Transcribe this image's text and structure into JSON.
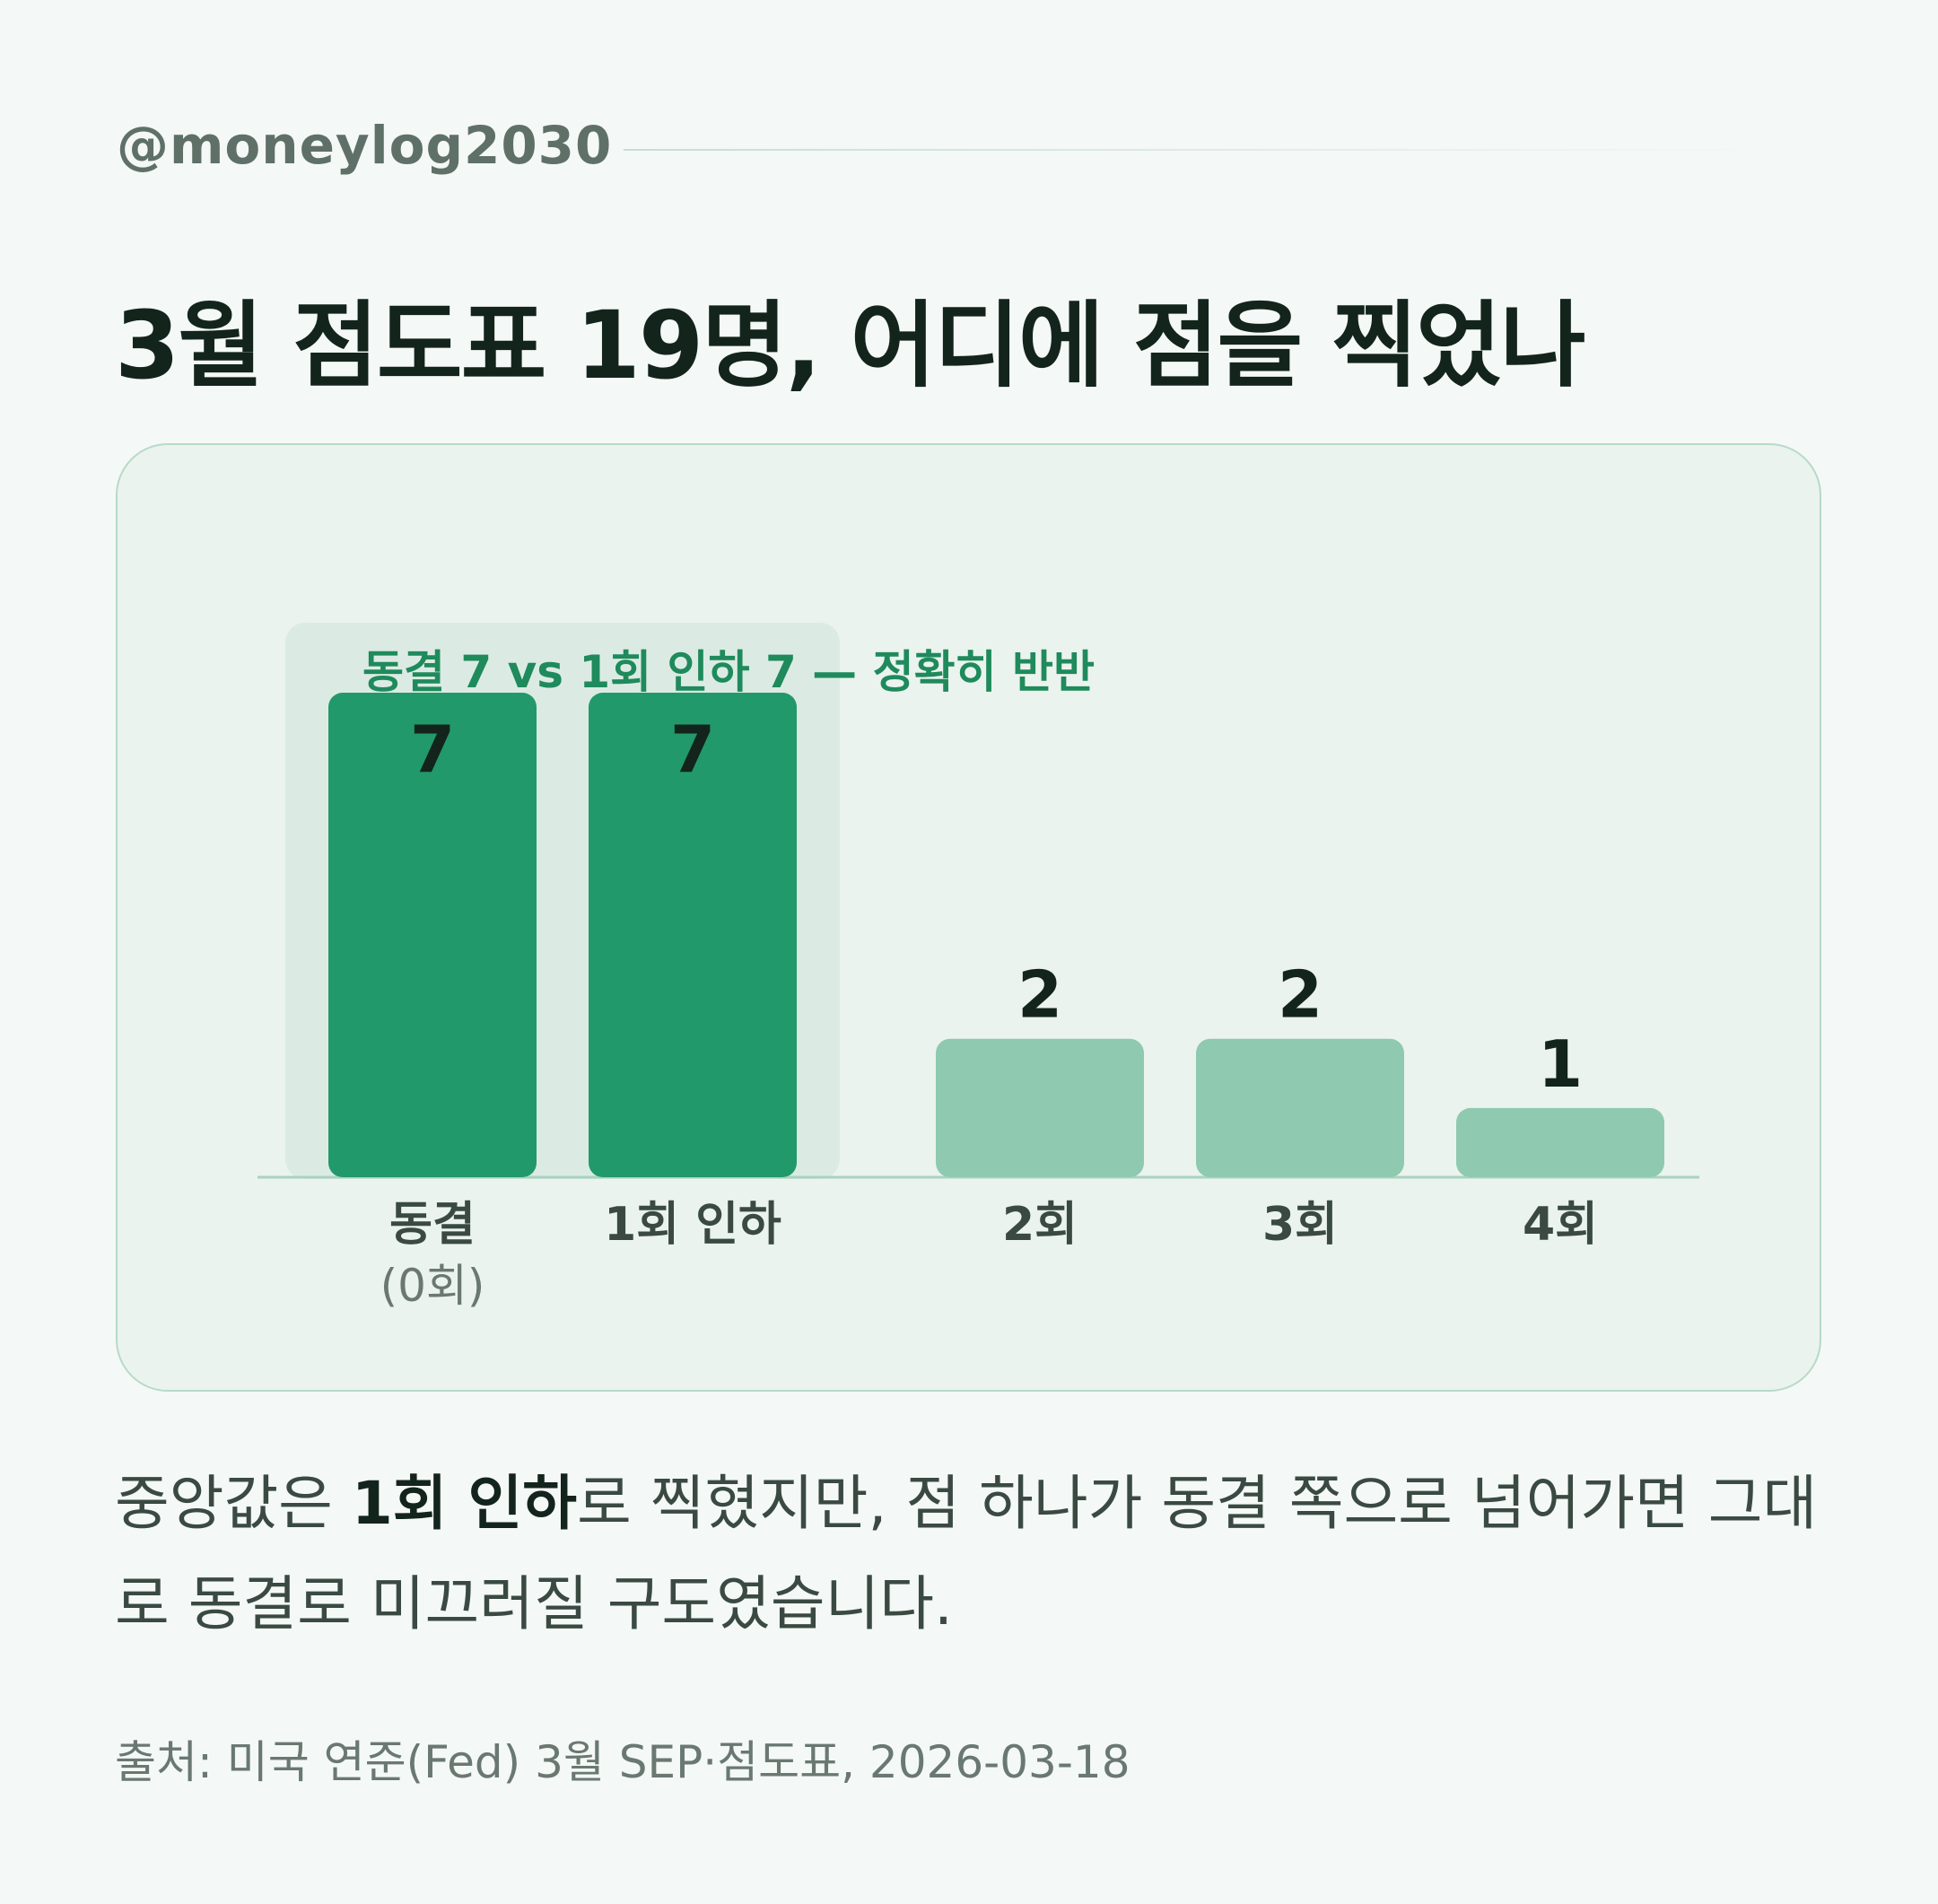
{
  "handle": "@moneylog2030",
  "title": "3월 점도표 19명, 어디에 점을 찍었나",
  "colors": {
    "highlight_bar": "#22996b",
    "normal_bar": "#8fc9b0",
    "highlight_band": "#dbebe3",
    "annotation": "#1f8a5c",
    "baseline": "#a8d3bf"
  },
  "chart_data": {
    "type": "bar",
    "categories": [
      "동결",
      "1회 인하",
      "2회",
      "3회",
      "4회"
    ],
    "category_sublabels": [
      "(0회)",
      "",
      "",
      "",
      ""
    ],
    "values": [
      7,
      7,
      2,
      2,
      1
    ],
    "value_labels": [
      "7",
      "7",
      "2",
      "2",
      "1"
    ],
    "highlighted": [
      true,
      true,
      false,
      false,
      false
    ],
    "annotation": "동결 7 vs 1회 인하 7 — 정확히 반반",
    "ylim": [
      0,
      7
    ],
    "grid": false,
    "legend": "none"
  },
  "description": {
    "part1": "중앙값은 ",
    "bold": "1회 인하",
    "part2": "로 찍혔지만, 점 하나가 동결 쪽으로 넘어가면 그대로 동결로 미끄러질 구도였습니다."
  },
  "source": "출처: 미국 연준(Fed) 3월 SEP·점도표, 2026-03-18"
}
